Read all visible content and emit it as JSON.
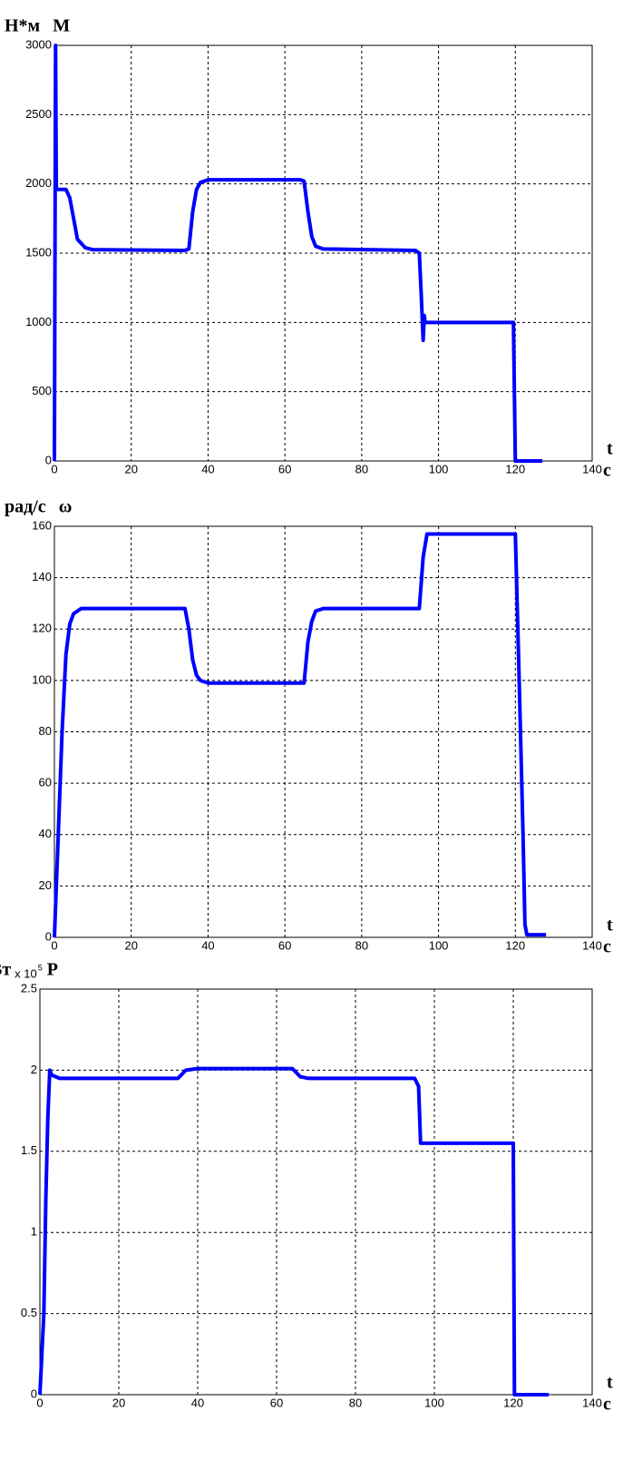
{
  "chart_data": [
    {
      "type": "line",
      "unit": "Н*м",
      "title": "M",
      "xlabel": "t",
      "xunit": "c",
      "xlim": [
        0,
        140
      ],
      "xticks": [
        0,
        20,
        40,
        60,
        80,
        100,
        120,
        140
      ],
      "ylim": [
        0,
        3000
      ],
      "yticks": [
        0,
        500,
        1000,
        1500,
        2000,
        2500,
        3000
      ],
      "grid": true,
      "series": [
        {
          "name": "M",
          "color": "#0000ff",
          "x": [
            0,
            0.3,
            0.5,
            3,
            4,
            6,
            8,
            10,
            34,
            35,
            36,
            37,
            38,
            40,
            64,
            65,
            66,
            67,
            68,
            70,
            94,
            95,
            95.5,
            96,
            96.3,
            96.5,
            97,
            119.5,
            120,
            127
          ],
          "values": [
            0,
            3000,
            1960,
            1960,
            1900,
            1600,
            1540,
            1525,
            1520,
            1530,
            1800,
            1960,
            2010,
            2030,
            2030,
            2020,
            1800,
            1620,
            1550,
            1530,
            1520,
            1500,
            1200,
            870,
            1050,
            1000,
            1000,
            1000,
            0,
            0
          ]
        }
      ]
    },
    {
      "type": "line",
      "unit": "рад/с",
      "title": "ω",
      "xlabel": "t",
      "xunit": "c",
      "xlim": [
        0,
        140
      ],
      "xticks": [
        0,
        20,
        40,
        60,
        80,
        100,
        120,
        140
      ],
      "ylim": [
        0,
        160
      ],
      "yticks": [
        0,
        20,
        40,
        60,
        80,
        100,
        120,
        140,
        160
      ],
      "grid": true,
      "series": [
        {
          "name": "ω",
          "color": "#0000ff",
          "x": [
            0,
            1,
            2,
            3,
            4,
            5,
            7,
            34,
            35,
            36,
            37,
            38,
            40,
            65,
            66,
            67,
            68,
            70,
            95,
            96,
            97,
            120,
            121,
            122,
            122.5,
            123,
            128
          ],
          "values": [
            0,
            40,
            80,
            110,
            122,
            126,
            128,
            128,
            120,
            108,
            102,
            100,
            99,
            99,
            115,
            123,
            127,
            128,
            128,
            148,
            157,
            157,
            100,
            40,
            5,
            1,
            1
          ]
        }
      ]
    },
    {
      "type": "line",
      "unit": "Вт",
      "multiplier": "x 10",
      "exponent": "5",
      "title": "P",
      "xlabel": "t",
      "xunit": "c",
      "xlim": [
        0,
        140
      ],
      "xticks": [
        0,
        20,
        40,
        60,
        80,
        100,
        120,
        140
      ],
      "ylim": [
        0,
        2.5
      ],
      "yticks": [
        0,
        0.5,
        1,
        1.5,
        2,
        2.5
      ],
      "grid": true,
      "series": [
        {
          "name": "P",
          "color": "#0000ff",
          "x": [
            0,
            1,
            1.5,
            2,
            2.5,
            3,
            5,
            35,
            37,
            40,
            64,
            66,
            68,
            95,
            96,
            96.5,
            98,
            120,
            120.3,
            129
          ],
          "values": [
            0,
            0.5,
            1.2,
            1.7,
            2.0,
            1.97,
            1.95,
            1.95,
            2.0,
            2.01,
            2.01,
            1.96,
            1.95,
            1.95,
            1.9,
            1.55,
            1.55,
            1.55,
            0,
            0
          ]
        }
      ]
    }
  ]
}
